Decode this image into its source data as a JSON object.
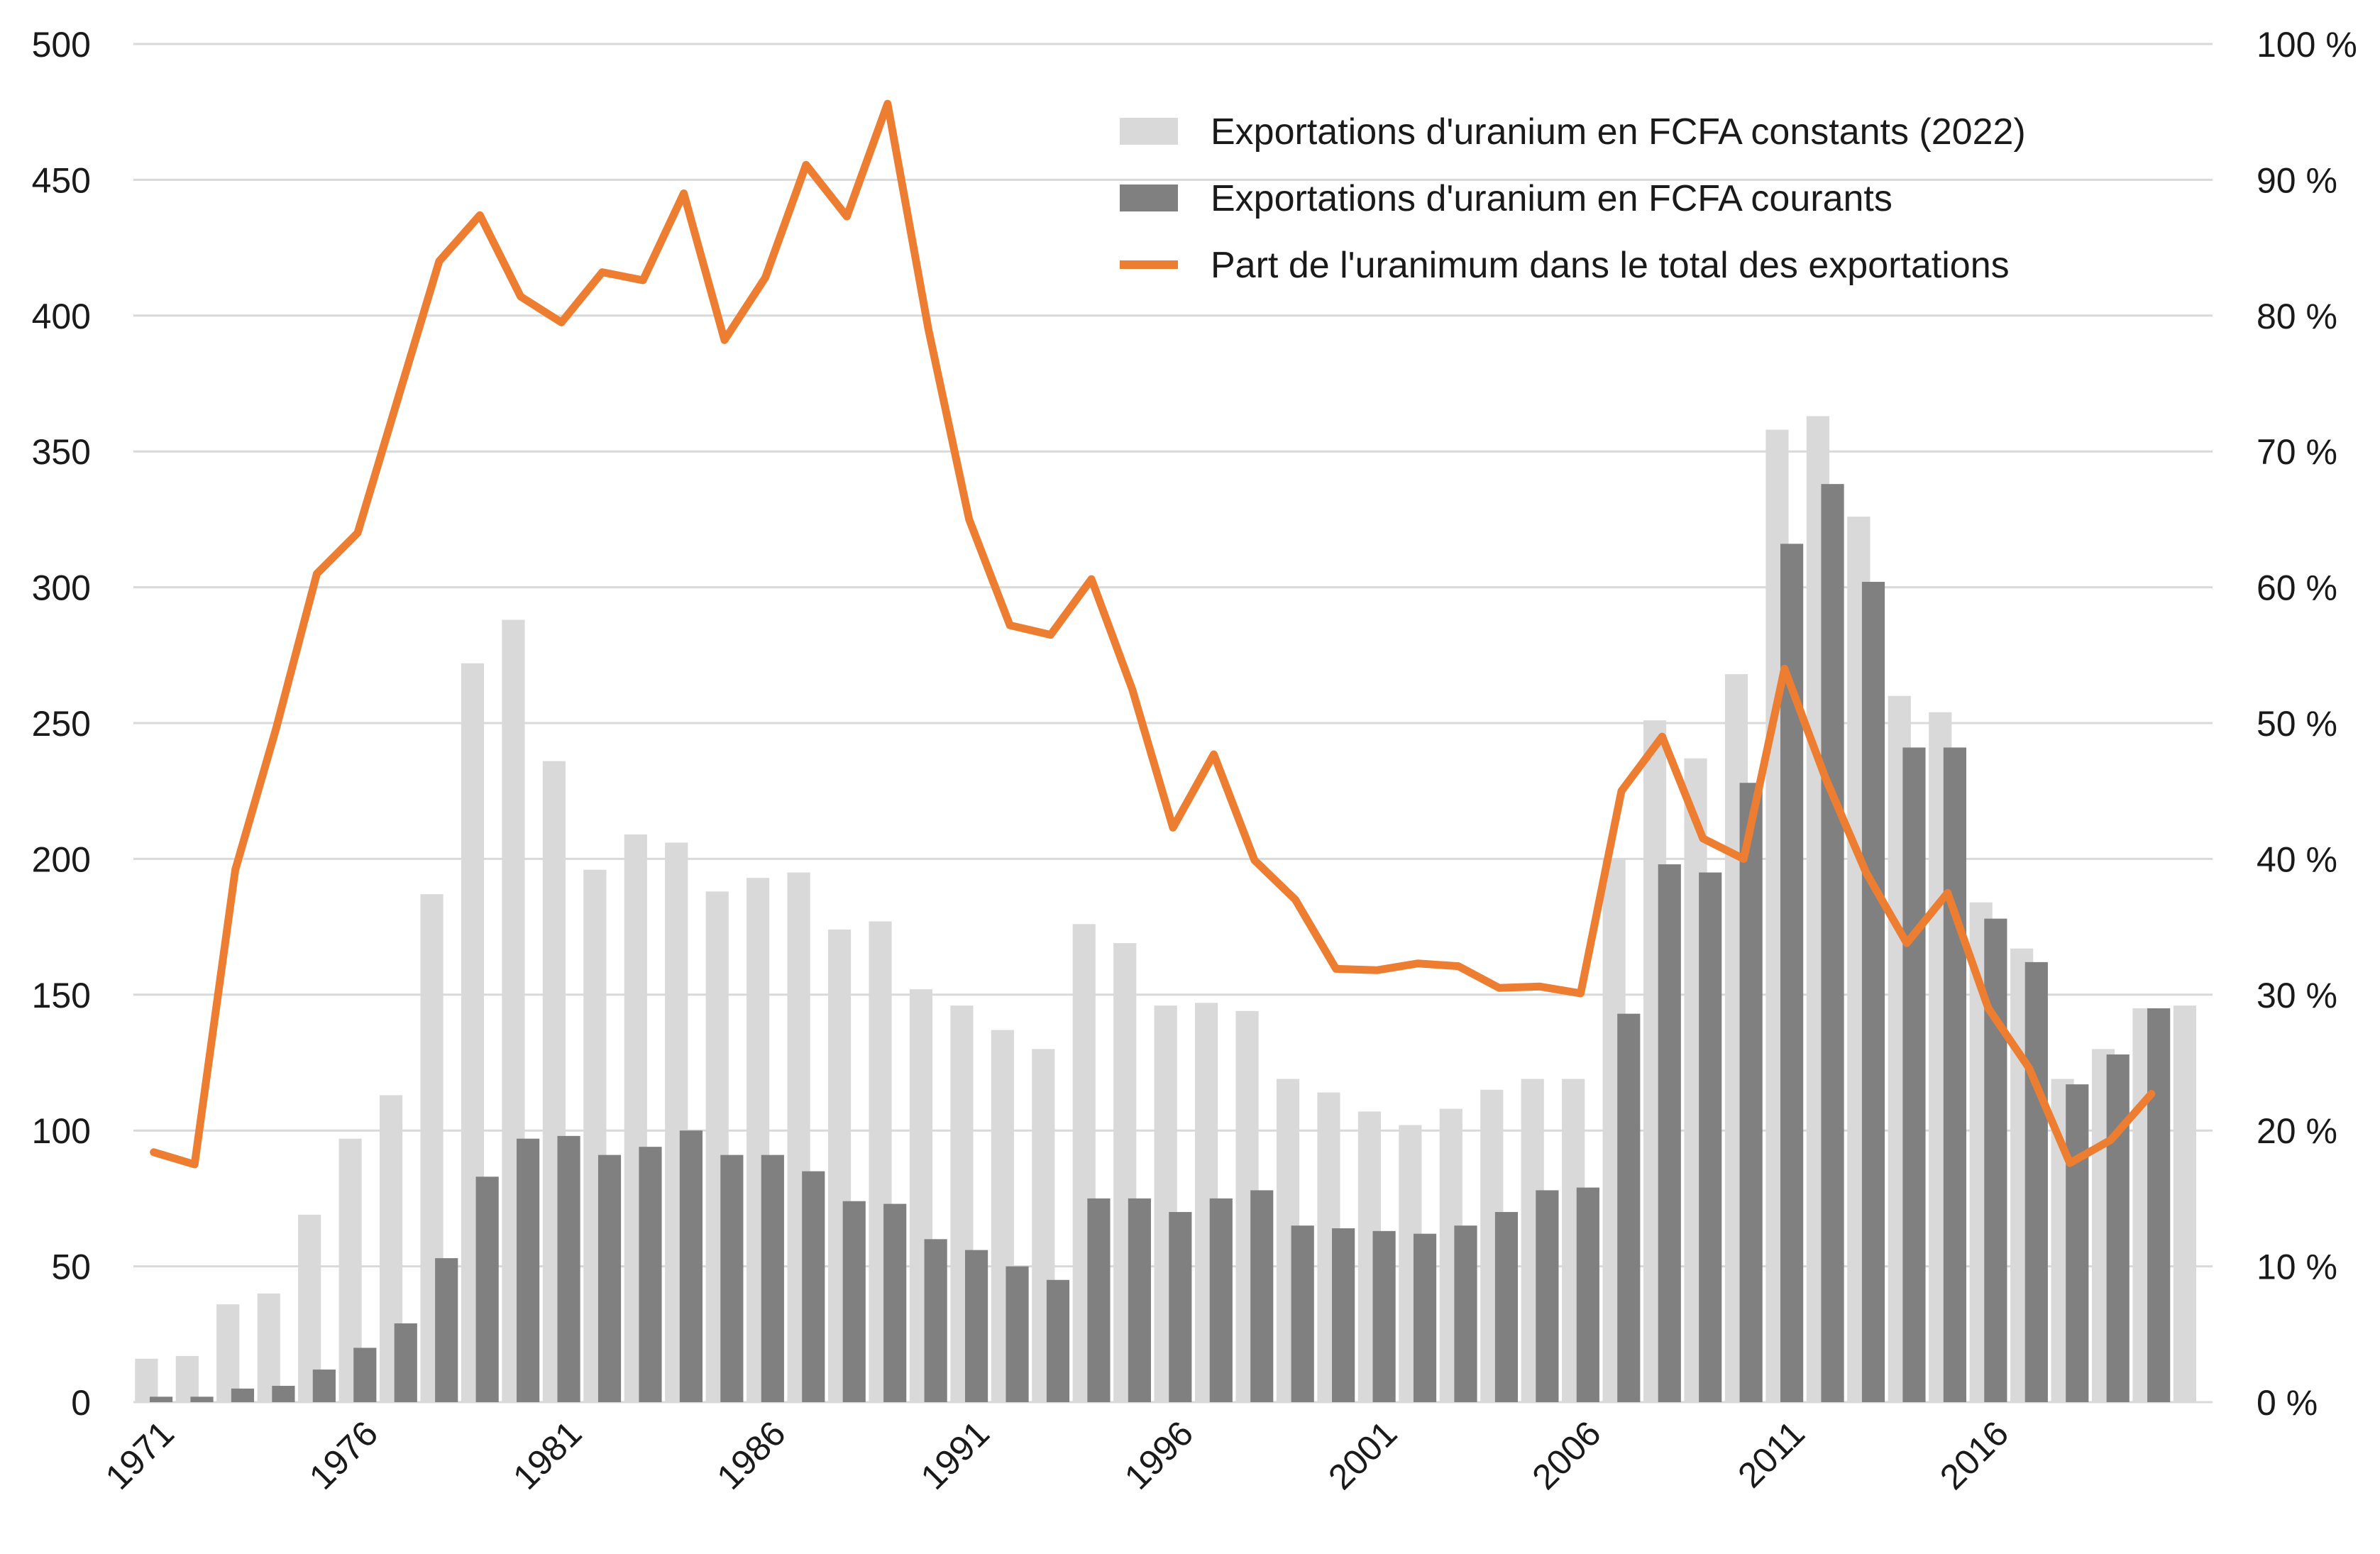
{
  "chart_data": {
    "type": "bar",
    "x": [
      1971,
      1972,
      1973,
      1974,
      1975,
      1976,
      1977,
      1978,
      1979,
      1980,
      1981,
      1982,
      1983,
      1984,
      1985,
      1986,
      1987,
      1988,
      1989,
      1990,
      1991,
      1992,
      1993,
      1994,
      1995,
      1996,
      1997,
      1998,
      1999,
      2000,
      2001,
      2002,
      2003,
      2004,
      2005,
      2006,
      2007,
      2008,
      2009,
      2010,
      2011,
      2012,
      2013,
      2014,
      2015,
      2016,
      2017,
      2018,
      2019,
      2020,
      2021
    ],
    "x_tick_labels": [
      "1971",
      "1976",
      "1981",
      "1986",
      "1991",
      "1996",
      "2001",
      "2006",
      "2011",
      "2016"
    ],
    "x_tick_values": [
      1971,
      1976,
      1981,
      1986,
      1991,
      1996,
      2001,
      2006,
      2011,
      2016
    ],
    "y_left": {
      "ylim": [
        0,
        500
      ],
      "ticks": [
        0,
        50,
        100,
        150,
        200,
        250,
        300,
        350,
        400,
        450,
        500
      ],
      "tick_labels": [
        "0",
        "50",
        "100",
        "150",
        "200",
        "250",
        "300",
        "350",
        "400",
        "450",
        "500"
      ]
    },
    "y_right": {
      "ylim": [
        0,
        100
      ],
      "ticks": [
        0,
        10,
        20,
        30,
        40,
        50,
        60,
        70,
        80,
        90,
        100
      ],
      "tick_labels": [
        "0 %",
        "10 %",
        "20 %",
        "30 %",
        "40 %",
        "50 %",
        "60 %",
        "70 %",
        "80 %",
        "90 %",
        "100 %"
      ]
    },
    "grid": "horizontal",
    "legend_position": "top-right",
    "series": [
      {
        "name": "Exportations d'uranium en FCFA constants (2022)",
        "type": "bar",
        "axis": "left",
        "color": "#d9d9d9",
        "values": [
          16,
          17,
          36,
          40,
          69,
          97,
          113,
          187,
          272,
          288,
          236,
          196,
          209,
          206,
          188,
          193,
          195,
          174,
          177,
          152,
          146,
          137,
          130,
          176,
          169,
          146,
          147,
          144,
          119,
          114,
          107,
          102,
          108,
          115,
          119,
          119,
          200,
          251,
          237,
          268,
          358,
          363,
          326,
          260,
          254,
          184,
          167,
          119,
          130,
          145,
          146
        ]
      },
      {
        "name": "Exportations d'uranium en FCFA courants",
        "type": "bar",
        "axis": "left",
        "color": "#808080",
        "values": [
          2,
          2,
          5,
          6,
          12,
          20,
          29,
          53,
          83,
          97,
          98,
          91,
          94,
          100,
          91,
          91,
          85,
          74,
          73,
          60,
          56,
          50,
          45,
          75,
          75,
          70,
          75,
          78,
          65,
          64,
          63,
          62,
          65,
          70,
          78,
          79,
          143,
          198,
          195,
          228,
          316,
          338,
          302,
          241,
          241,
          178,
          162,
          117,
          128,
          145,
          null
        ]
      },
      {
        "name": "Part de l'uranimum dans le total des exportations",
        "type": "line",
        "axis": "right",
        "color": "#ed7d31",
        "values": [
          18.4,
          17.5,
          39.2,
          49.6,
          61,
          64,
          74,
          84,
          87.4,
          81.4,
          79.5,
          83.2,
          82.6,
          89,
          78.2,
          82.8,
          91.1,
          87.3,
          95.6,
          79,
          65,
          57.2,
          56.5,
          60.6,
          52.5,
          42.3,
          47.7,
          39.9,
          37,
          31.9,
          31.8,
          32.3,
          32.1,
          30.5,
          30.6,
          30.1,
          45,
          49,
          41.5,
          40,
          54,
          46,
          39,
          33.8,
          37.5,
          29,
          24.6,
          17.6,
          19.3,
          22.7,
          null
        ]
      }
    ]
  },
  "legend": {
    "items": [
      {
        "label": "Exportations d'uranium en FCFA constants (2022)",
        "color": "#d9d9d9",
        "kind": "box"
      },
      {
        "label": "Exportations d'uranium en FCFA courants",
        "color": "#808080",
        "kind": "box"
      },
      {
        "label": "Part de l'uranimum dans le total des exportations",
        "color": "#ed7d31",
        "kind": "line"
      }
    ]
  },
  "colors": {
    "gridline": "#d9d9d9",
    "text": "#1a1a1a"
  }
}
